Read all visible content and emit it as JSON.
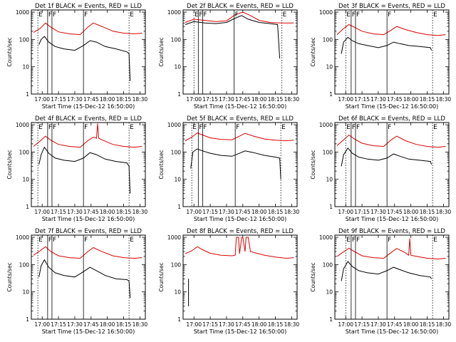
{
  "colors": {
    "events": "#000000",
    "lld": "#dd0000",
    "axes": "#000000",
    "background": "#ffffff"
  },
  "x_ticks": [
    "17:00",
    "17:15",
    "17:30",
    "17:45",
    "18:00",
    "18:15",
    "18:30"
  ],
  "y_ticks": [
    "1",
    "10",
    "100",
    "1000"
  ],
  "chart_data": [
    {
      "type": "line",
      "detector": "1f",
      "title": "Det 1f BLACK = Events, RED = LLD",
      "xlabel": "Start Time (15-Dec-12 16:50:00)",
      "ylabel": "Counts/sec",
      "xlim": [
        "16:50",
        "18:35"
      ],
      "ylim": [
        1,
        1200
      ],
      "yscale": "log",
      "markers": [
        {
          "label": "E",
          "time": "16:56"
        },
        {
          "label": "F",
          "time": "17:05"
        },
        {
          "label": "F",
          "time": "17:09"
        },
        {
          "label": "F",
          "time": "17:38"
        },
        {
          "label": "E",
          "time": "18:20"
        }
      ],
      "series": [
        {
          "name": "Events",
          "color": "#000000",
          "x": [
            "16:57",
            "16:59",
            "17:02",
            "17:06",
            "17:12",
            "17:20",
            "17:30",
            "17:38",
            "17:44",
            "17:50",
            "17:58",
            "18:08",
            "18:18",
            "18:20",
            "18:21"
          ],
          "y": [
            65,
            100,
            130,
            80,
            55,
            45,
            40,
            60,
            90,
            80,
            55,
            45,
            35,
            30,
            3
          ]
        },
        {
          "name": "LLD",
          "color": "#dd0000",
          "x": [
            "16:52",
            "16:58",
            "17:03",
            "17:08",
            "17:15",
            "17:25",
            "17:35",
            "17:42",
            "17:47",
            "17:55",
            "18:05",
            "18:15",
            "18:25",
            "18:32"
          ],
          "y": [
            180,
            250,
            400,
            280,
            190,
            160,
            150,
            280,
            400,
            300,
            200,
            170,
            160,
            170
          ]
        }
      ]
    },
    {
      "type": "line",
      "detector": "2f",
      "title": "Det 2f BLACK = Events, RED = LLD",
      "xlabel": "Start Time (15-Dec-12 16:50:00)",
      "ylabel": "Counts/sec",
      "xlim": [
        "16:50",
        "18:35"
      ],
      "ylim": [
        1,
        1200
      ],
      "yscale": "log",
      "markers": [
        {
          "label": "E",
          "time": "17:00"
        },
        {
          "label": "F",
          "time": "17:04"
        },
        {
          "label": "F",
          "time": "17:08"
        },
        {
          "label": "F",
          "time": "17:37"
        },
        {
          "label": "E",
          "time": "18:21"
        }
      ],
      "series": [
        {
          "name": "Events",
          "color": "#000000",
          "x": [
            "16:52",
            "17:00",
            "17:10",
            "17:20",
            "17:30",
            "17:38",
            "17:44",
            "17:50",
            "18:00",
            "18:10",
            "18:17",
            "18:19"
          ],
          "y": [
            350,
            450,
            400,
            380,
            420,
            600,
            750,
            550,
            420,
            380,
            350,
            20
          ]
        },
        {
          "name": "LLD",
          "color": "#dd0000",
          "x": [
            "16:52",
            "17:00",
            "17:10",
            "17:20",
            "17:30",
            "17:38",
            "17:45",
            "17:52",
            "18:00",
            "18:10",
            "18:20",
            "18:32"
          ],
          "y": [
            420,
            550,
            500,
            450,
            480,
            800,
            1000,
            750,
            500,
            420,
            400,
            400
          ]
        }
      ]
    },
    {
      "type": "line",
      "detector": "3f",
      "title": "Det 3f BLACK = Events, RED = LLD",
      "xlabel": "Start Time (15-Dec-12 16:50:00)",
      "ylabel": "Counts/sec",
      "xlim": [
        "16:50",
        "18:35"
      ],
      "ylim": [
        1,
        1200
      ],
      "yscale": "log",
      "markers": [
        {
          "label": "E",
          "time": "17:00"
        },
        {
          "label": "F",
          "time": "17:05"
        },
        {
          "label": "F",
          "time": "17:09"
        },
        {
          "label": "F",
          "time": "17:38"
        },
        {
          "label": "E",
          "time": "18:20"
        }
      ],
      "series": [
        {
          "name": "Events",
          "color": "#000000",
          "x": [
            "16:56",
            "16:58",
            "17:02",
            "17:06",
            "17:12",
            "17:20",
            "17:30",
            "17:38",
            "17:44",
            "17:50",
            "17:58",
            "18:08",
            "18:18",
            "18:19"
          ],
          "y": [
            30,
            80,
            120,
            90,
            70,
            60,
            50,
            60,
            80,
            70,
            60,
            55,
            50,
            40
          ]
        },
        {
          "name": "LLD",
          "color": "#dd0000",
          "x": [
            "16:52",
            "16:58",
            "17:03",
            "17:08",
            "17:15",
            "17:25",
            "17:35",
            "17:42",
            "17:47",
            "17:55",
            "18:05",
            "18:15",
            "18:25",
            "18:32"
          ],
          "y": [
            150,
            250,
            350,
            280,
            200,
            160,
            150,
            220,
            300,
            230,
            180,
            150,
            140,
            150
          ]
        }
      ]
    },
    {
      "type": "line",
      "detector": "4f",
      "title": "Det 4f BLACK = Events, RED = LLD",
      "xlabel": "Start Time (15-Dec-12 16:50:00)",
      "ylabel": "Counts/sec",
      "xlim": [
        "16:50",
        "18:35"
      ],
      "ylim": [
        1,
        1200
      ],
      "yscale": "log",
      "markers": [
        {
          "label": "E",
          "time": "16:56"
        },
        {
          "label": "F",
          "time": "17:05"
        },
        {
          "label": "F",
          "time": "17:09"
        },
        {
          "label": "F",
          "time": "17:38"
        },
        {
          "label": "E",
          "time": "18:20"
        }
      ],
      "series": [
        {
          "name": "Events",
          "color": "#000000",
          "x": [
            "16:57",
            "16:59",
            "17:02",
            "17:06",
            "17:12",
            "17:20",
            "17:30",
            "17:38",
            "17:44",
            "17:50",
            "17:58",
            "18:08",
            "18:18",
            "18:20",
            "18:21"
          ],
          "y": [
            35,
            80,
            150,
            90,
            60,
            50,
            45,
            60,
            95,
            80,
            55,
            45,
            40,
            30,
            3
          ]
        },
        {
          "name": "LLD",
          "color": "#dd0000",
          "x": [
            "16:52",
            "16:58",
            "17:03",
            "17:08",
            "17:15",
            "17:25",
            "17:35",
            "17:42",
            "17:47",
            "17:50",
            "17:51",
            "17:52",
            "17:55",
            "18:05",
            "18:15",
            "18:25",
            "18:32"
          ],
          "y": [
            160,
            250,
            380,
            270,
            190,
            160,
            150,
            260,
            350,
            320,
            1100,
            320,
            280,
            190,
            160,
            150,
            160
          ]
        }
      ]
    },
    {
      "type": "line",
      "detector": "5f",
      "title": "Det 5f BLACK = Events, RED = LLD",
      "xlabel": "Start Time (15-Dec-12 16:50:00)",
      "ylabel": "Counts/sec",
      "xlim": [
        "16:50",
        "18:35"
      ],
      "ylim": [
        1,
        1200
      ],
      "yscale": "log",
      "markers": [
        {
          "label": "E",
          "time": "16:58"
        },
        {
          "label": "F",
          "time": "17:04"
        },
        {
          "label": "F",
          "time": "17:08"
        },
        {
          "label": "F",
          "time": "17:38"
        },
        {
          "label": "E",
          "time": "18:20"
        }
      ],
      "series": [
        {
          "name": "Events",
          "color": "#000000",
          "x": [
            "16:57",
            "16:59",
            "17:03",
            "17:08",
            "17:15",
            "17:25",
            "17:35",
            "17:42",
            "17:47",
            "17:55",
            "18:05",
            "18:15",
            "18:19",
            "18:20"
          ],
          "y": [
            25,
            100,
            130,
            110,
            90,
            75,
            70,
            90,
            110,
            95,
            75,
            65,
            60,
            10
          ]
        },
        {
          "name": "LLD",
          "color": "#dd0000",
          "x": [
            "16:52",
            "16:58",
            "17:03",
            "17:08",
            "17:15",
            "17:25",
            "17:35",
            "17:42",
            "17:47",
            "17:55",
            "18:05",
            "18:15",
            "18:25",
            "18:32"
          ],
          "y": [
            260,
            350,
            500,
            420,
            330,
            290,
            280,
            380,
            480,
            380,
            300,
            270,
            260,
            270
          ]
        }
      ]
    },
    {
      "type": "line",
      "detector": "6f",
      "title": "Det 6f BLACK = Events, RED = LLD",
      "xlabel": "Start Time (15-Dec-12 16:50:00)",
      "ylabel": "Counts/sec",
      "xlim": [
        "16:50",
        "18:35"
      ],
      "ylim": [
        1,
        1200
      ],
      "yscale": "log",
      "markers": [
        {
          "label": "E",
          "time": "17:00"
        },
        {
          "label": "F",
          "time": "17:05"
        },
        {
          "label": "F",
          "time": "17:09"
        },
        {
          "label": "F",
          "time": "17:38"
        },
        {
          "label": "E",
          "time": "18:20"
        }
      ],
      "series": [
        {
          "name": "Events",
          "color": "#000000",
          "x": [
            "16:56",
            "16:58",
            "17:02",
            "17:06",
            "17:12",
            "17:20",
            "17:30",
            "17:38",
            "17:44",
            "17:50",
            "17:58",
            "18:08",
            "18:18",
            "18:19"
          ],
          "y": [
            30,
            80,
            140,
            90,
            65,
            55,
            50,
            60,
            85,
            70,
            55,
            50,
            45,
            35
          ]
        },
        {
          "name": "LLD",
          "color": "#dd0000",
          "x": [
            "16:52",
            "16:58",
            "17:03",
            "17:08",
            "17:15",
            "17:25",
            "17:35",
            "17:42",
            "17:47",
            "17:55",
            "18:05",
            "18:15",
            "18:25",
            "18:32"
          ],
          "y": [
            170,
            280,
            420,
            300,
            210,
            170,
            160,
            280,
            380,
            260,
            190,
            160,
            150,
            160
          ]
        }
      ]
    },
    {
      "type": "line",
      "detector": "7f",
      "title": "Det 7f BLACK = Events, RED = LLD",
      "xlabel": "Start Time (15-Dec-12 16:50:00)",
      "ylabel": "Counts/sec",
      "xlim": [
        "16:50",
        "18:35"
      ],
      "ylim": [
        1,
        1200
      ],
      "yscale": "log",
      "markers": [
        {
          "label": "E",
          "time": "16:56"
        },
        {
          "label": "F",
          "time": "17:05"
        },
        {
          "label": "F",
          "time": "17:09"
        },
        {
          "label": "F",
          "time": "17:38"
        },
        {
          "label": "E",
          "time": "18:20"
        }
      ],
      "series": [
        {
          "name": "Events",
          "color": "#000000",
          "x": [
            "16:57",
            "16:59",
            "17:02",
            "17:06",
            "17:12",
            "17:20",
            "17:30",
            "17:38",
            "17:44",
            "17:50",
            "17:58",
            "18:08",
            "18:18",
            "18:20",
            "18:21"
          ],
          "y": [
            35,
            90,
            150,
            80,
            50,
            40,
            35,
            55,
            80,
            60,
            40,
            30,
            28,
            25,
            6
          ]
        },
        {
          "name": "LLD",
          "color": "#dd0000",
          "x": [
            "16:52",
            "16:58",
            "17:03",
            "17:08",
            "17:15",
            "17:25",
            "17:35",
            "17:42",
            "17:47",
            "17:55",
            "18:05",
            "18:15",
            "18:25",
            "18:32"
          ],
          "y": [
            220,
            320,
            450,
            300,
            210,
            180,
            170,
            300,
            420,
            300,
            210,
            180,
            170,
            180
          ]
        }
      ]
    },
    {
      "type": "line",
      "detector": "8f",
      "title": "Det 8f BLACK = Events, RED = LLD",
      "xlabel": "Start Time (15-Dec-12 16:50:00)",
      "ylabel": "Counts/sec",
      "xlim": [
        "16:50",
        "18:35"
      ],
      "ylim": [
        1,
        1200
      ],
      "yscale": "log",
      "markers": [],
      "series": [
        {
          "name": "Events",
          "color": "#000000",
          "x": [
            "16:55",
            "16:55",
            "16:55"
          ],
          "y": [
            3,
            30,
            3
          ]
        },
        {
          "name": "LLD",
          "color": "#dd0000",
          "x": [
            "16:52",
            "16:58",
            "17:03",
            "17:08",
            "17:15",
            "17:25",
            "17:35",
            "17:38",
            "17:39",
            "17:41",
            "17:42",
            "17:44",
            "17:45",
            "17:47",
            "17:48",
            "17:50",
            "17:52",
            "18:05",
            "18:15",
            "18:25",
            "18:32"
          ],
          "y": [
            250,
            320,
            450,
            350,
            260,
            220,
            210,
            220,
            1000,
            1000,
            250,
            1000,
            1000,
            300,
            1000,
            1000,
            300,
            220,
            190,
            170,
            180
          ]
        }
      ]
    },
    {
      "type": "line",
      "detector": "9f",
      "title": "Det 9f BLACK = Events, RED = LLD",
      "xlabel": "Start Time (15-Dec-12 16:50:00)",
      "ylabel": "Counts/sec",
      "xlim": [
        "16:50",
        "18:35"
      ],
      "ylim": [
        1,
        1200
      ],
      "yscale": "log",
      "markers": [
        {
          "label": "E",
          "time": "17:00"
        },
        {
          "label": "F",
          "time": "17:05"
        },
        {
          "label": "F",
          "time": "17:09"
        },
        {
          "label": "F",
          "time": "17:38"
        },
        {
          "label": "E",
          "time": "18:20"
        }
      ],
      "series": [
        {
          "name": "Events",
          "color": "#000000",
          "x": [
            "16:56",
            "16:58",
            "17:02",
            "17:06",
            "17:12",
            "17:20",
            "17:30",
            "17:38",
            "17:44",
            "17:50",
            "17:58",
            "18:08",
            "18:18",
            "18:19"
          ],
          "y": [
            25,
            70,
            130,
            85,
            60,
            50,
            45,
            60,
            80,
            65,
            50,
            40,
            35,
            30
          ]
        },
        {
          "name": "LLD",
          "color": "#dd0000",
          "x": [
            "16:52",
            "16:58",
            "17:03",
            "17:08",
            "17:15",
            "17:25",
            "17:35",
            "17:42",
            "17:47",
            "17:55",
            "17:58",
            "17:59",
            "18:00",
            "18:05",
            "18:15",
            "18:25",
            "18:32"
          ],
          "y": [
            200,
            290,
            400,
            300,
            210,
            180,
            170,
            280,
            390,
            270,
            220,
            900,
            220,
            200,
            170,
            160,
            170
          ]
        }
      ]
    }
  ]
}
